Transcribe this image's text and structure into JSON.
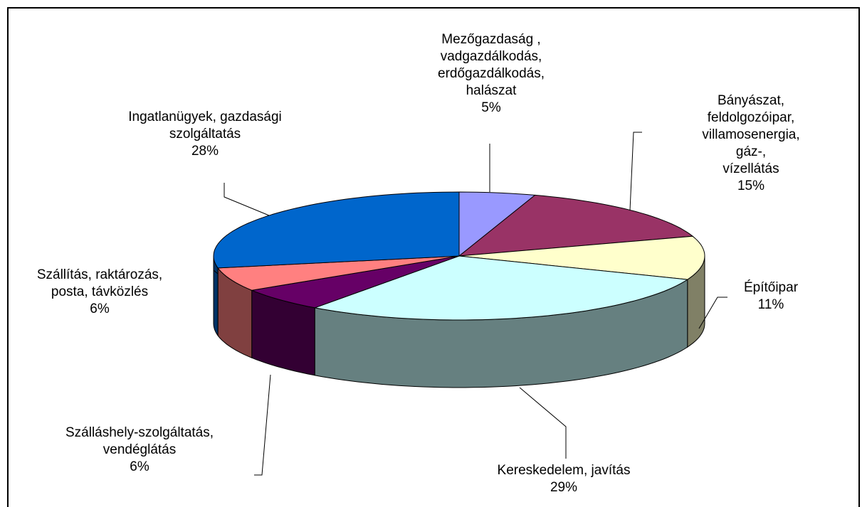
{
  "chart_data": {
    "type": "pie3d",
    "categories": [
      "Mezőgazdaság ,\nvadgazdálkodás,\nerdőgazdálkodás,\nhalászat",
      "Bányászat,\nfeldolgozóipar,\nvillamosenergia, gáz-,\nvízellátás",
      "Építőipar",
      "Kereskedelem, javítás",
      "Szálláshely-szolgáltatás,\nvendéglátás",
      "Szállítás, raktározás,\nposta, távközlés",
      "Ingatlanügyek, gazdasági\nszolgáltatás"
    ],
    "values": [
      5,
      15,
      11,
      29,
      6,
      6,
      28
    ],
    "value_labels": [
      "5%",
      "15%",
      "11%",
      "29%",
      "6%",
      "6%",
      "28%"
    ],
    "colors": [
      "#9999ff",
      "#993366",
      "#ffffcc",
      "#ccffff",
      "#660066",
      "#ff8080",
      "#0066cc"
    ]
  }
}
